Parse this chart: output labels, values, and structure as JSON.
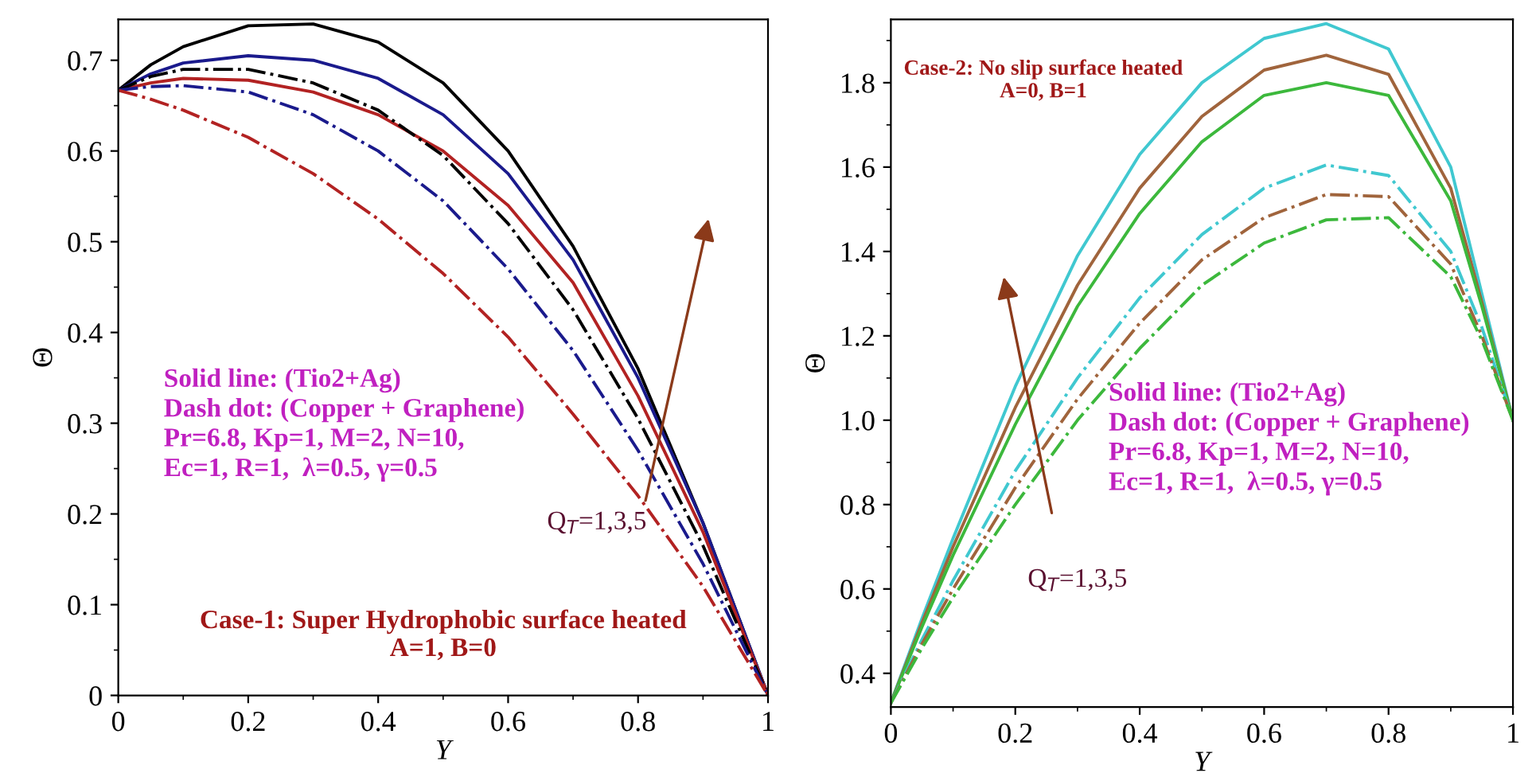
{
  "chart_data": [
    {
      "type": "line",
      "xlabel": "Y",
      "ylabel": "Θ",
      "x": [
        0,
        0.05,
        0.1,
        0.2,
        0.3,
        0.4,
        0.5,
        0.6,
        0.7,
        0.8,
        0.9,
        1
      ],
      "series": [
        {
          "color": "#000000",
          "line_style": "solid",
          "values": [
            0.667,
            0.695,
            0.715,
            0.738,
            0.74,
            0.72,
            0.675,
            0.6,
            0.495,
            0.36,
            0.19,
            0
          ]
        },
        {
          "color": "#1a1a8c",
          "line_style": "solid",
          "values": [
            0.667,
            0.685,
            0.697,
            0.705,
            0.7,
            0.68,
            0.64,
            0.575,
            0.48,
            0.35,
            0.19,
            0
          ]
        },
        {
          "color": "#b22222",
          "line_style": "solid",
          "values": [
            0.667,
            0.675,
            0.68,
            0.678,
            0.665,
            0.64,
            0.6,
            0.54,
            0.455,
            0.33,
            0.18,
            0
          ]
        },
        {
          "color": "#000000",
          "line_style": "dashdot",
          "values": [
            0.667,
            0.682,
            0.69,
            0.69,
            0.675,
            0.645,
            0.595,
            0.52,
            0.425,
            0.305,
            0.165,
            0
          ]
        },
        {
          "color": "#1a1a8c",
          "line_style": "dashdot",
          "values": [
            0.667,
            0.671,
            0.672,
            0.665,
            0.64,
            0.6,
            0.545,
            0.47,
            0.38,
            0.27,
            0.145,
            0
          ]
        },
        {
          "color": "#b22222",
          "line_style": "dashdot",
          "values": [
            0.667,
            0.657,
            0.645,
            0.615,
            0.575,
            0.525,
            0.465,
            0.395,
            0.31,
            0.22,
            0.12,
            0
          ]
        }
      ],
      "xlim": [
        0,
        1
      ],
      "ylim": [
        0,
        0.745
      ],
      "xticks": [
        0,
        0.2,
        0.4,
        0.6,
        0.8,
        1
      ],
      "yticks": [
        0,
        0.1,
        0.2,
        0.3,
        0.4,
        0.5,
        0.6,
        0.7
      ],
      "annotations": [
        "Solid line: (Tio2+Ag)\nDash dot: (Copper + Graphene)\nPr=6.8, Kp=1, M=2, N=10,\nEc=1, R=1,  λ=0.5, γ=0.5",
        "Case-1: Super Hydrophobic surface heated\nA=1, B=0",
        "Q$_{T}$=1,3,5"
      ]
    },
    {
      "type": "line",
      "xlabel": "Y",
      "ylabel": "Θ",
      "x": [
        0,
        0.05,
        0.1,
        0.2,
        0.3,
        0.4,
        0.5,
        0.6,
        0.7,
        0.8,
        0.9,
        0.95,
        1
      ],
      "series": [
        {
          "color": "#40c8d0",
          "line_style": "solid",
          "values": [
            0.33,
            0.53,
            0.72,
            1.08,
            1.39,
            1.63,
            1.8,
            1.905,
            1.94,
            1.88,
            1.6,
            1.3,
            1.0
          ]
        },
        {
          "color": "#a0643c",
          "line_style": "solid",
          "values": [
            0.33,
            0.52,
            0.7,
            1.03,
            1.32,
            1.55,
            1.72,
            1.83,
            1.865,
            1.82,
            1.55,
            1.28,
            1.0
          ]
        },
        {
          "color": "#3cb83c",
          "line_style": "solid",
          "values": [
            0.33,
            0.51,
            0.68,
            0.99,
            1.27,
            1.49,
            1.66,
            1.77,
            1.8,
            1.77,
            1.52,
            1.27,
            1.0
          ]
        },
        {
          "color": "#40c8d0",
          "line_style": "dashdot",
          "values": [
            0.33,
            0.48,
            0.62,
            0.88,
            1.1,
            1.29,
            1.44,
            1.55,
            1.605,
            1.58,
            1.4,
            1.22,
            1.0
          ]
        },
        {
          "color": "#a0643c",
          "line_style": "dashdot",
          "values": [
            0.33,
            0.47,
            0.6,
            0.84,
            1.05,
            1.23,
            1.38,
            1.48,
            1.535,
            1.53,
            1.37,
            1.2,
            1.0
          ]
        },
        {
          "color": "#3cb83c",
          "line_style": "dashdot",
          "values": [
            0.33,
            0.46,
            0.58,
            0.8,
            1.0,
            1.17,
            1.32,
            1.42,
            1.475,
            1.48,
            1.34,
            1.19,
            1.0
          ]
        }
      ],
      "xlim": [
        0,
        1
      ],
      "ylim": [
        0.32,
        1.95
      ],
      "xticks": [
        0,
        0.2,
        0.4,
        0.6,
        0.8,
        1
      ],
      "yticks": [
        0.4,
        0.6,
        0.8,
        {
          "value": 1.0,
          "label": "1.0"
        },
        1.2,
        1.4,
        1.6,
        1.8
      ],
      "annotations": [
        "Case-2: No slip surface heated\nA=0, B=1",
        "Solid line: (Tio2+Ag)\nDash dot: (Copper + Graphene)\nPr=6.8, Kp=1, M=2, N=10,\nEc=1, R=1,  λ=0.5, γ=0.5",
        "Q$_{T}$=1,3,5"
      ]
    }
  ]
}
